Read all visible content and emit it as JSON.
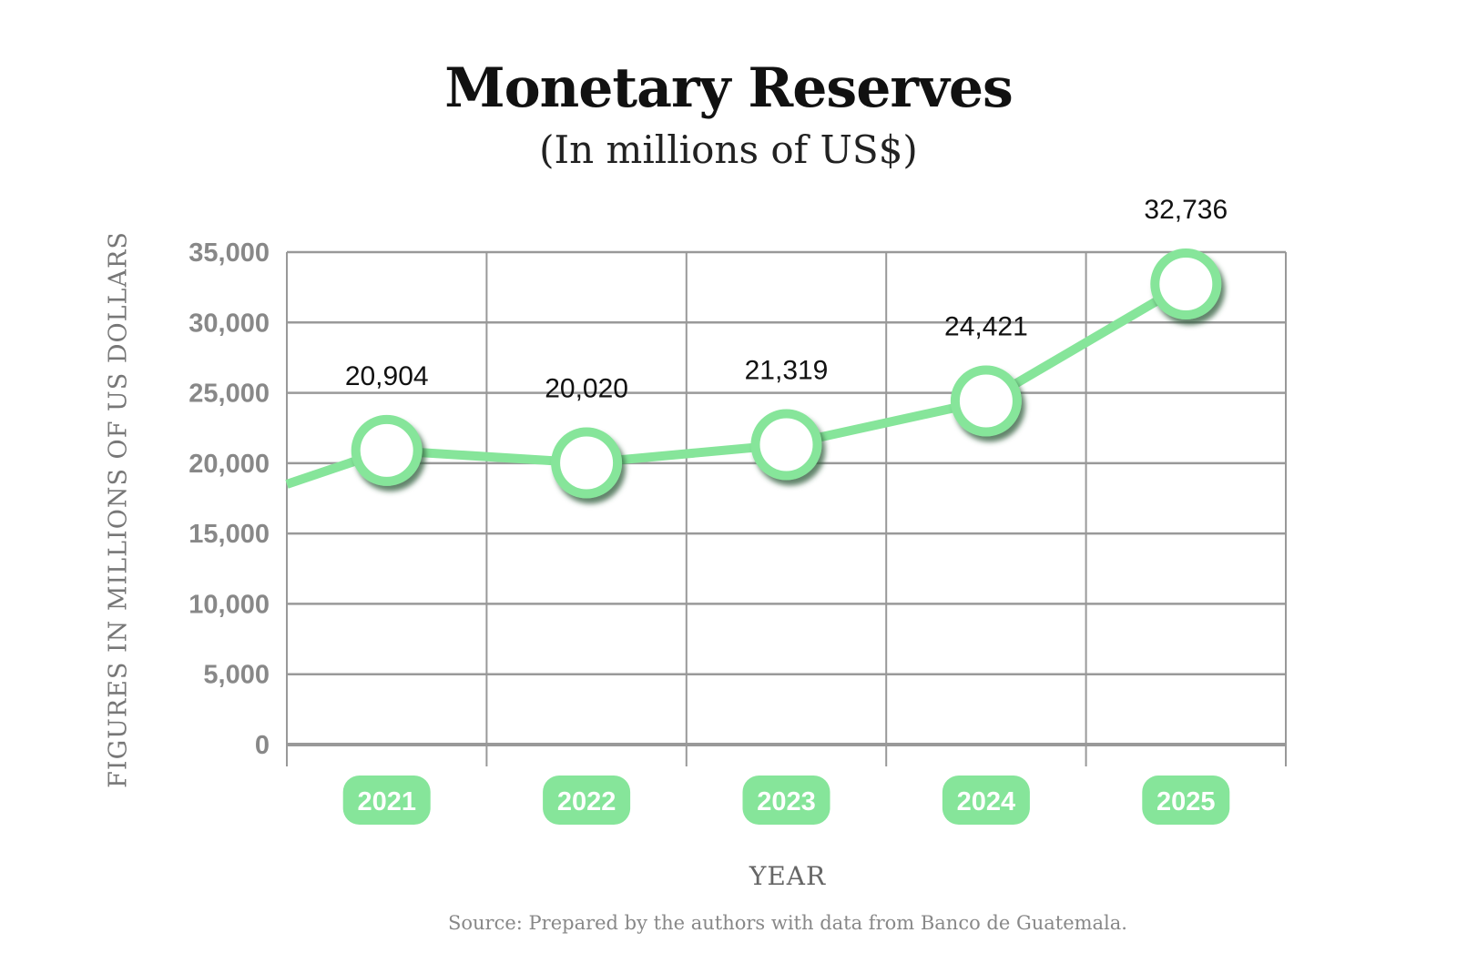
{
  "chart_data": {
    "type": "line",
    "title": "Monetary Reserves",
    "subtitle": "(In millions of US$)",
    "xlabel": "YEAR",
    "ylabel": "FIGURES IN MILLIONS OF US DOLLARS",
    "categories": [
      "2021",
      "2022",
      "2023",
      "2024",
      "2025"
    ],
    "series": [
      {
        "name": "Monetary Reserves",
        "values": [
          20904,
          20020,
          21319,
          24421,
          32736
        ]
      }
    ],
    "data_labels": [
      "20,904",
      "20,020",
      "21,319",
      "24,421",
      "32,736"
    ],
    "line_start_value": 18500,
    "ylim": [
      0,
      35000
    ],
    "yticks": [
      0,
      5000,
      10000,
      15000,
      20000,
      25000,
      30000,
      35000
    ],
    "ytick_labels": [
      "0",
      "5,000",
      "10,000",
      "15,000",
      "20,000",
      "25,000",
      "30,000",
      "35,000"
    ],
    "grid": true,
    "source": "Source: Prepared by the authors with data from Banco de Guatemala.",
    "colors": {
      "line": "#86e59a",
      "marker_shadow": "#3f7a4c",
      "grid": "#999999",
      "pill": "#86e59a"
    }
  }
}
